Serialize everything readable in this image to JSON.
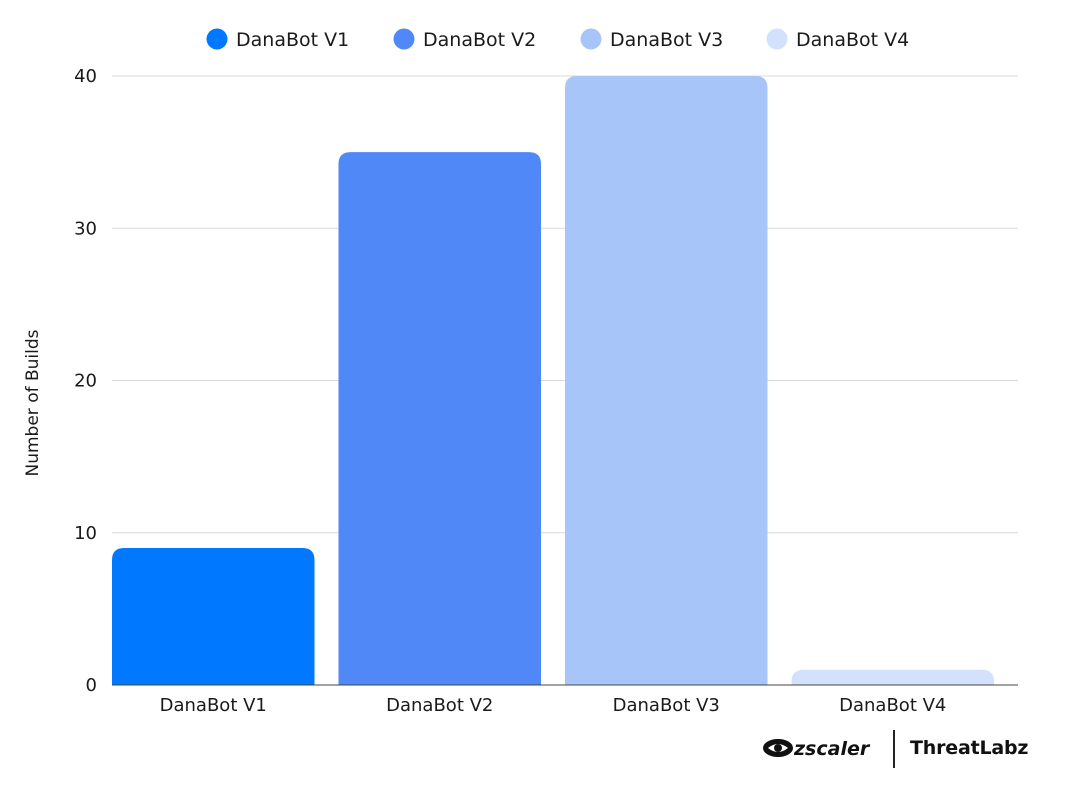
{
  "chart_data": {
    "type": "bar",
    "categories": [
      "DanaBot V1",
      "DanaBot V2",
      "DanaBot V3",
      "DanaBot V4"
    ],
    "values": [
      9,
      35,
      40,
      1
    ],
    "title": "",
    "xlabel": "",
    "ylabel": "Number of Builds",
    "ylim": [
      0,
      40
    ],
    "yticks": [
      0,
      10,
      20,
      30,
      40
    ],
    "grid": true,
    "legend_position": "top-center",
    "legend": [
      "DanaBot V1",
      "DanaBot V2",
      "DanaBot V3",
      "DanaBot V4"
    ],
    "colors": [
      "#0078FF",
      "#5089F7",
      "#A8C5FA",
      "#D3E1FC"
    ]
  },
  "branding": {
    "zscaler_text": "zscaler",
    "threatlabz_text": "ThreatLabz"
  }
}
